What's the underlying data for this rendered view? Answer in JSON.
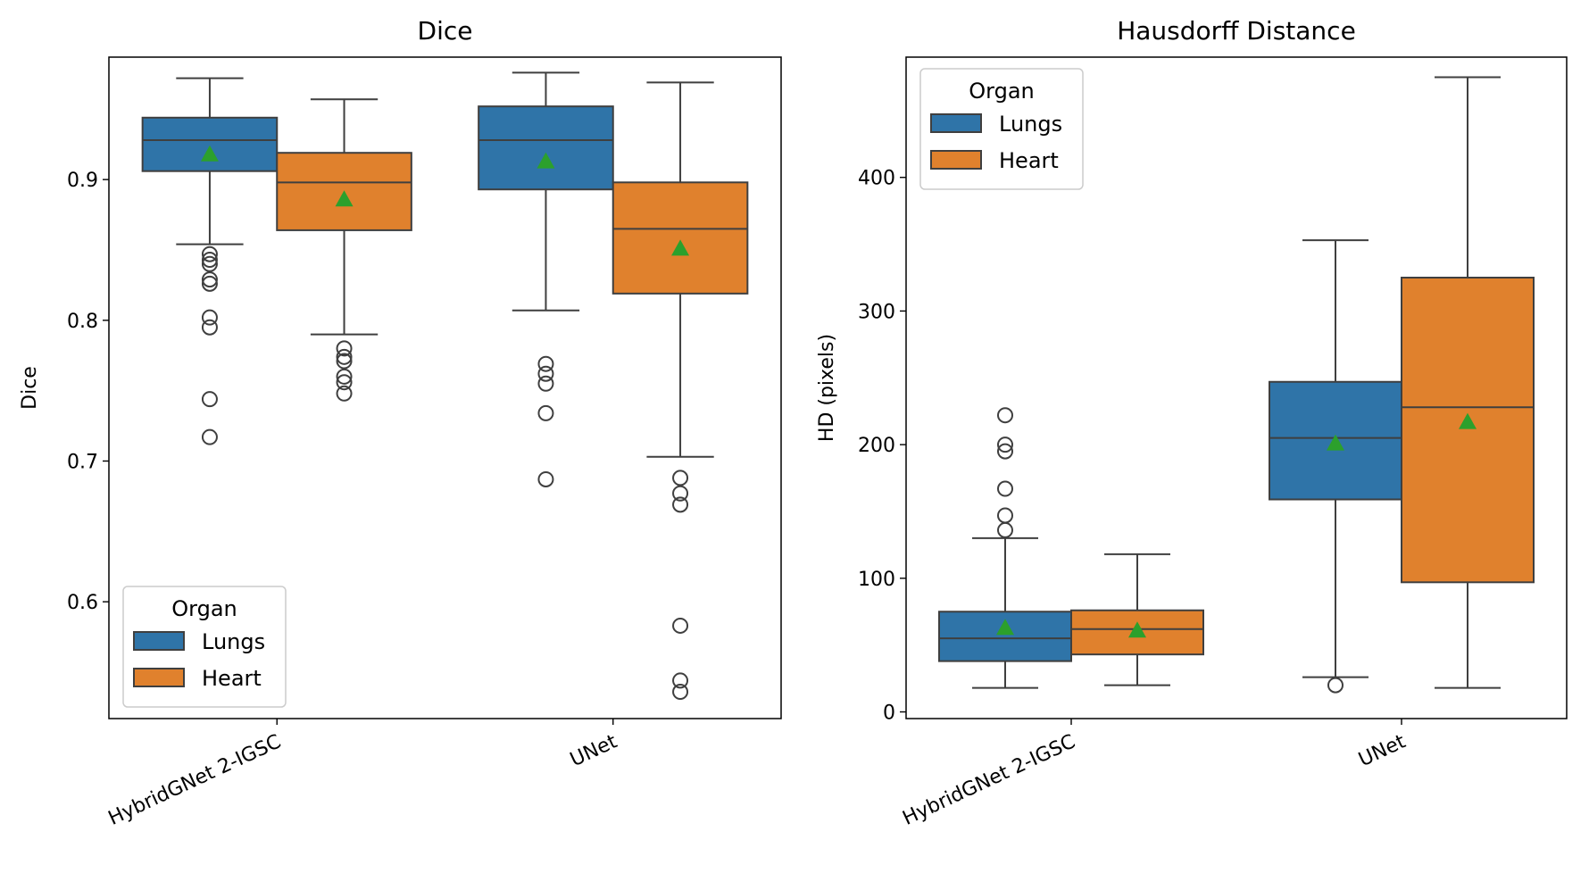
{
  "chart_data": [
    {
      "type": "box",
      "title": "Dice",
      "xlabel": "",
      "ylabel": "Dice",
      "ylim": [
        0.517,
        0.987
      ],
      "yticks": [
        0.6,
        0.7,
        0.8,
        0.9
      ],
      "ytick_labels": [
        "0.6",
        "0.7",
        "0.8",
        "0.9"
      ],
      "categories": [
        "HybridGNet 2-IGSC",
        "UNet"
      ],
      "legend": {
        "title": "Organ",
        "placement": "lower-left"
      },
      "show_means": true,
      "series": [
        {
          "name": "Lungs",
          "color": "#2f74a8",
          "boxes": [
            {
              "whisker_low": 0.854,
              "q1": 0.906,
              "median": 0.928,
              "q3": 0.944,
              "whisker_high": 0.972,
              "mean": 0.918,
              "outliers": [
                0.847,
                0.843,
                0.84,
                0.829,
                0.826,
                0.802,
                0.795,
                0.744,
                0.717
              ]
            },
            {
              "whisker_low": 0.807,
              "q1": 0.893,
              "median": 0.928,
              "q3": 0.952,
              "whisker_high": 0.976,
              "mean": 0.913,
              "outliers": [
                0.769,
                0.762,
                0.755,
                0.734,
                0.687
              ]
            }
          ]
        },
        {
          "name": "Heart",
          "color": "#e0812d",
          "boxes": [
            {
              "whisker_low": 0.79,
              "q1": 0.864,
              "median": 0.898,
              "q3": 0.919,
              "whisker_high": 0.957,
              "mean": 0.886,
              "outliers": [
                0.78,
                0.774,
                0.771,
                0.76,
                0.756,
                0.748
              ]
            },
            {
              "whisker_low": 0.703,
              "q1": 0.819,
              "median": 0.865,
              "q3": 0.898,
              "whisker_high": 0.969,
              "mean": 0.851,
              "outliers": [
                0.688,
                0.677,
                0.669,
                0.583,
                0.544,
                0.536
              ]
            }
          ]
        }
      ]
    },
    {
      "type": "box",
      "title": "Hausdorff Distance",
      "xlabel": "",
      "ylabel": "HD (pixels)",
      "ylim": [
        -5,
        490
      ],
      "yticks": [
        0,
        100,
        200,
        300,
        400
      ],
      "ytick_labels": [
        "0",
        "100",
        "200",
        "300",
        "400"
      ],
      "categories": [
        "HybridGNet 2-IGSC",
        "UNet"
      ],
      "legend": {
        "title": "Organ",
        "placement": "upper-left"
      },
      "show_means": true,
      "series": [
        {
          "name": "Lungs",
          "color": "#2f74a8",
          "boxes": [
            {
              "whisker_low": 18,
              "q1": 38,
              "median": 55,
              "q3": 75,
              "whisker_high": 130,
              "mean": 63,
              "outliers": [
                136,
                147,
                167,
                195,
                200,
                222
              ]
            },
            {
              "whisker_low": 26,
              "q1": 159,
              "median": 205,
              "q3": 247,
              "whisker_high": 353,
              "mean": 201,
              "outliers": [
                20
              ]
            }
          ]
        },
        {
          "name": "Heart",
          "color": "#e0812d",
          "boxes": [
            {
              "whisker_low": 20,
              "q1": 43,
              "median": 62,
              "q3": 76,
              "whisker_high": 118,
              "mean": 61,
              "outliers": []
            },
            {
              "whisker_low": 18,
              "q1": 97,
              "median": 228,
              "q3": 325,
              "whisker_high": 475,
              "mean": 217,
              "outliers": []
            }
          ]
        }
      ]
    }
  ]
}
